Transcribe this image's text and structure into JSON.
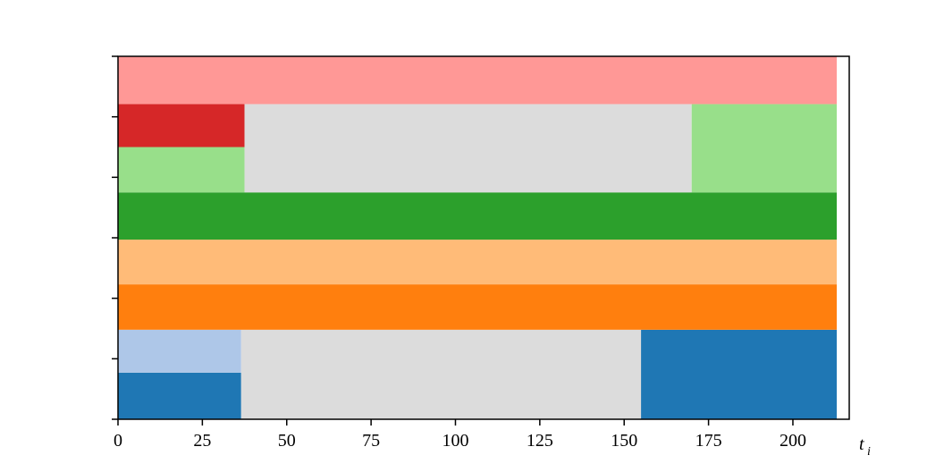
{
  "chart_data": {
    "type": "broken_barh",
    "xlabel": "t",
    "xlabel_sub": "i",
    "xlim": [
      0,
      216.7
    ],
    "xticks": [
      0,
      25,
      50,
      75,
      100,
      125,
      150,
      175,
      200
    ],
    "ylim": [
      0,
      6
    ],
    "yticks": [
      0,
      1,
      2,
      3,
      4,
      5,
      6
    ],
    "bars": [
      {
        "color": "#1f77b4",
        "x": 0,
        "width": 36.5,
        "y": 0,
        "height": 0.77
      },
      {
        "color": "#aec7e8",
        "x": 0,
        "width": 36.5,
        "y": 0.77,
        "height": 0.71
      },
      {
        "color": "#dcdcdc",
        "x": 36.5,
        "width": 118.5,
        "y": 0,
        "height": 1.48
      },
      {
        "color": "#1f77b4",
        "x": 155,
        "width": 58,
        "y": 0,
        "height": 1.48
      },
      {
        "color": "#ff7f0e",
        "x": 0,
        "width": 213,
        "y": 1.48,
        "height": 0.75
      },
      {
        "color": "#ffbb78",
        "x": 0,
        "width": 213,
        "y": 2.23,
        "height": 0.74
      },
      {
        "color": "#2ca02c",
        "x": 0,
        "width": 213,
        "y": 2.97,
        "height": 0.78
      },
      {
        "color": "#98df8a",
        "x": 0,
        "width": 37.5,
        "y": 3.75,
        "height": 0.75
      },
      {
        "color": "#d62728",
        "x": 0,
        "width": 37.5,
        "y": 4.5,
        "height": 0.71
      },
      {
        "color": "#dcdcdc",
        "x": 37.5,
        "width": 132.5,
        "y": 3.75,
        "height": 1.46
      },
      {
        "color": "#98df8a",
        "x": 170,
        "width": 43,
        "y": 3.75,
        "height": 1.46
      },
      {
        "color": "#ff9896",
        "x": 0,
        "width": 213,
        "y": 5.21,
        "height": 0.79
      }
    ]
  }
}
